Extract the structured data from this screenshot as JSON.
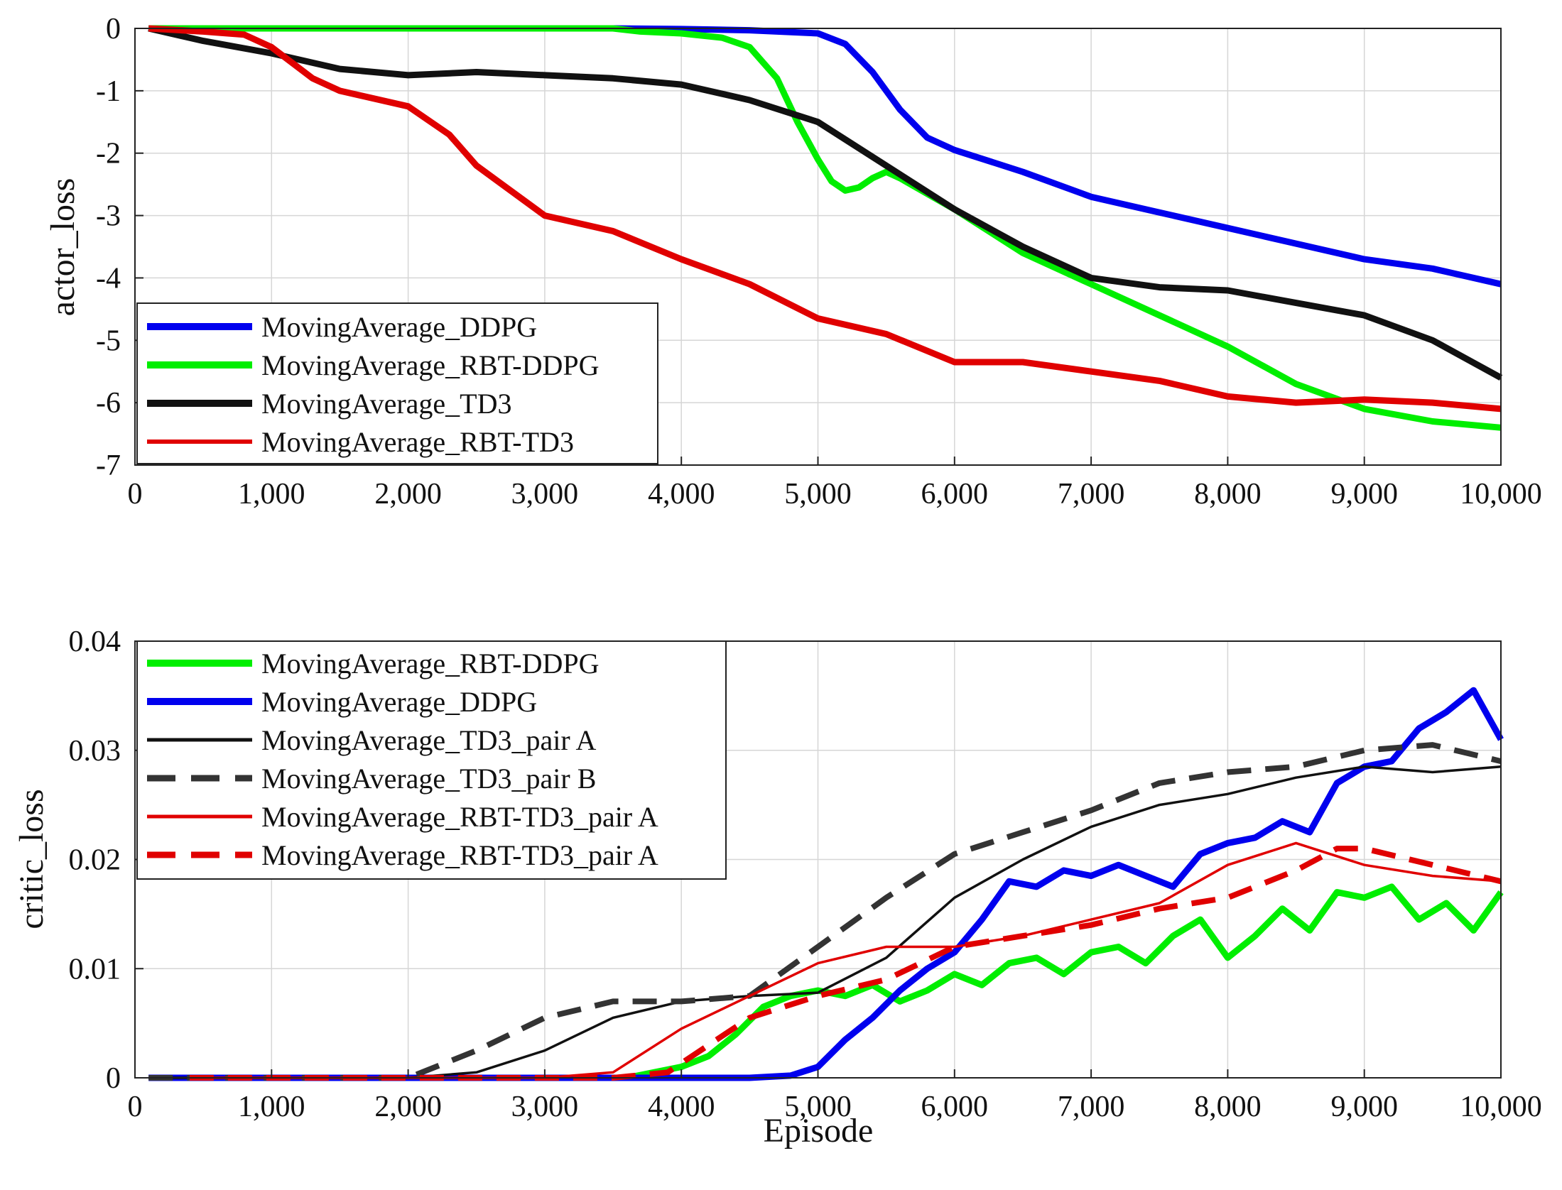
{
  "chart_data": [
    {
      "type": "line",
      "title": "",
      "xlabel": "",
      "ylabel": "actor_loss",
      "xlim": [
        0,
        10000
      ],
      "ylim": [
        -7,
        0
      ],
      "grid": true,
      "legend_position": "bottom-left",
      "x_ticks": [
        0,
        1000,
        2000,
        3000,
        4000,
        5000,
        6000,
        7000,
        8000,
        9000,
        10000
      ],
      "x_tick_labels": [
        "0",
        "1,000",
        "2,000",
        "3,000",
        "4,000",
        "5,000",
        "6,000",
        "7,000",
        "8,000",
        "9,000",
        "10,000"
      ],
      "y_ticks": [
        0,
        -1,
        -2,
        -3,
        -4,
        -5,
        -6,
        -7
      ],
      "y_tick_labels": [
        "0",
        "-1",
        "-2",
        "-3",
        "-4",
        "-5",
        "-6",
        "-7"
      ],
      "series": [
        {
          "name": "MovingAverage_DDPG",
          "color": "#0000ee",
          "style": "solid",
          "width": "thick",
          "x": [
            100,
            1000,
            2000,
            3000,
            3500,
            4000,
            4500,
            5000,
            5200,
            5400,
            5600,
            5800,
            6000,
            6500,
            7000,
            7500,
            8000,
            8500,
            9000,
            9500,
            10000
          ],
          "y": [
            0,
            0,
            0,
            0,
            0,
            -0.01,
            -0.03,
            -0.08,
            -0.25,
            -0.7,
            -1.3,
            -1.75,
            -1.95,
            -2.3,
            -2.7,
            -2.95,
            -3.2,
            -3.45,
            -3.7,
            -3.85,
            -4.1
          ]
        },
        {
          "name": "MovingAverage_RBT-DDPG",
          "color": "#00ee00",
          "style": "solid",
          "width": "thick",
          "x": [
            100,
            1000,
            2000,
            3000,
            3500,
            3700,
            4000,
            4300,
            4500,
            4700,
            4850,
            5000,
            5100,
            5200,
            5300,
            5400,
            5500,
            5600,
            5800,
            6000,
            6500,
            7000,
            7500,
            8000,
            8500,
            9000,
            9500,
            10000
          ],
          "y": [
            0,
            0,
            0,
            0,
            0,
            -0.05,
            -0.08,
            -0.15,
            -0.3,
            -0.8,
            -1.5,
            -2.1,
            -2.45,
            -2.6,
            -2.55,
            -2.4,
            -2.3,
            -2.4,
            -2.65,
            -2.9,
            -3.6,
            -4.1,
            -4.6,
            -5.1,
            -5.7,
            -6.1,
            -6.3,
            -6.4
          ]
        },
        {
          "name": "MovingAverage_TD3",
          "color": "#111111",
          "style": "solid",
          "width": "thick",
          "x": [
            100,
            500,
            1000,
            1500,
            2000,
            2500,
            3000,
            3500,
            4000,
            4500,
            5000,
            5500,
            6000,
            6500,
            7000,
            7500,
            8000,
            8500,
            9000,
            9500,
            10000
          ],
          "y": [
            0,
            -0.2,
            -0.4,
            -0.65,
            -0.75,
            -0.7,
            -0.75,
            -0.8,
            -0.9,
            -1.15,
            -1.5,
            -2.2,
            -2.9,
            -3.5,
            -4.0,
            -4.15,
            -4.2,
            -4.4,
            -4.6,
            -5.0,
            -5.6
          ]
        },
        {
          "name": "MovingAverage_RBT-TD3",
          "color": "#e00000",
          "style": "solid",
          "width": "thick",
          "x": [
            100,
            500,
            800,
            1000,
            1300,
            1500,
            2000,
            2300,
            2500,
            3000,
            3500,
            4000,
            4500,
            5000,
            5500,
            6000,
            6500,
            7000,
            7500,
            8000,
            8500,
            9000,
            9500,
            10000
          ],
          "y": [
            0,
            -0.05,
            -0.1,
            -0.3,
            -0.8,
            -1.0,
            -1.25,
            -1.7,
            -2.2,
            -3.0,
            -3.25,
            -3.7,
            -4.1,
            -4.65,
            -4.9,
            -5.35,
            -5.35,
            -5.5,
            -5.65,
            -5.9,
            -6.0,
            -5.95,
            -6.0,
            -6.1
          ]
        }
      ],
      "legend": [
        "MovingAverage_DDPG",
        "MovingAverage_RBT-DDPG",
        "MovingAverage_TD3",
        "MovingAverage_RBT-TD3"
      ]
    },
    {
      "type": "line",
      "title": "",
      "xlabel": "Episode",
      "ylabel": "critic_loss",
      "xlim": [
        0,
        10000
      ],
      "ylim": [
        0,
        0.04
      ],
      "grid": true,
      "legend_position": "top-left",
      "x_ticks": [
        0,
        1000,
        2000,
        3000,
        4000,
        5000,
        6000,
        7000,
        8000,
        9000,
        10000
      ],
      "x_tick_labels": [
        "0",
        "1,000",
        "2,000",
        "3,000",
        "4,000",
        "5,000",
        "6,000",
        "7,000",
        "8,000",
        "9,000",
        "10,000"
      ],
      "y_ticks": [
        0,
        0.01,
        0.02,
        0.03,
        0.04
      ],
      "y_tick_labels": [
        "0",
        "0.01",
        "0.02",
        "0.03",
        "0.04"
      ],
      "series": [
        {
          "name": "MovingAverage_RBT-DDPG",
          "color": "#00ee00",
          "style": "solid",
          "width": "thick",
          "x": [
            3600,
            3800,
            4000,
            4200,
            4400,
            4600,
            4800,
            5000,
            5200,
            5400,
            5600,
            5800,
            6000,
            6200,
            6400,
            6600,
            6800,
            7000,
            7200,
            7400,
            7600,
            7800,
            8000,
            8200,
            8400,
            8600,
            8800,
            9000,
            9200,
            9400,
            9600,
            9800,
            10000
          ],
          "y": [
            0,
            0.0005,
            0.001,
            0.002,
            0.004,
            0.0065,
            0.0075,
            0.008,
            0.0075,
            0.0085,
            0.007,
            0.008,
            0.0095,
            0.0085,
            0.0105,
            0.011,
            0.0095,
            0.0115,
            0.012,
            0.0105,
            0.013,
            0.0145,
            0.011,
            0.013,
            0.0155,
            0.0135,
            0.017,
            0.0165,
            0.0175,
            0.0145,
            0.016,
            0.0135,
            0.017
          ]
        },
        {
          "name": "MovingAverage_DDPG",
          "color": "#0000ee",
          "style": "solid",
          "width": "thick",
          "x": [
            100,
            1000,
            2000,
            3000,
            3500,
            4000,
            4500,
            4800,
            5000,
            5200,
            5400,
            5600,
            5800,
            6000,
            6200,
            6400,
            6600,
            6800,
            7000,
            7200,
            7400,
            7600,
            7800,
            8000,
            8200,
            8400,
            8600,
            8800,
            9000,
            9200,
            9400,
            9600,
            9800,
            10000
          ],
          "y": [
            0,
            0,
            0,
            0,
            0,
            0,
            0,
            0.0002,
            0.001,
            0.0035,
            0.0055,
            0.008,
            0.01,
            0.0115,
            0.0145,
            0.018,
            0.0175,
            0.019,
            0.0185,
            0.0195,
            0.0185,
            0.0175,
            0.0205,
            0.0215,
            0.022,
            0.0235,
            0.0225,
            0.027,
            0.0285,
            0.029,
            0.032,
            0.0335,
            0.0355,
            0.031
          ]
        },
        {
          "name": "MovingAverage_TD3_pair A",
          "color": "#111111",
          "style": "solid",
          "width": "thin",
          "x": [
            100,
            1000,
            2000,
            2500,
            3000,
            3500,
            4000,
            4500,
            5000,
            5500,
            6000,
            6500,
            7000,
            7500,
            8000,
            8500,
            9000,
            9500,
            10000
          ],
          "y": [
            0,
            0,
            0,
            0.0005,
            0.0025,
            0.0055,
            0.007,
            0.0075,
            0.0078,
            0.011,
            0.0165,
            0.02,
            0.023,
            0.025,
            0.026,
            0.0275,
            0.0285,
            0.028,
            0.0285
          ]
        },
        {
          "name": "MovingAverage_TD3_pair B",
          "color": "#333333",
          "style": "dashed",
          "width": "thick",
          "x": [
            100,
            1000,
            1500,
            2000,
            2500,
            3000,
            3500,
            4000,
            4500,
            5000,
            5500,
            6000,
            6500,
            7000,
            7500,
            8000,
            8500,
            9000,
            9500,
            10000
          ],
          "y": [
            0,
            0,
            0,
            0,
            0.0025,
            0.0055,
            0.007,
            0.007,
            0.0075,
            0.012,
            0.0165,
            0.0205,
            0.0225,
            0.0245,
            0.027,
            0.028,
            0.0285,
            0.03,
            0.0305,
            0.029
          ]
        },
        {
          "name": "MovingAverage_RBT-TD3_pair A",
          "color": "#e00000",
          "style": "solid",
          "width": "thin",
          "x": [
            400,
            1000,
            2000,
            3000,
            3500,
            4000,
            4500,
            5000,
            5500,
            6000,
            6500,
            7000,
            7500,
            8000,
            8500,
            9000,
            9500,
            10000
          ],
          "y": [
            0,
            0,
            0,
            0,
            0.0005,
            0.0045,
            0.0075,
            0.0105,
            0.012,
            0.012,
            0.013,
            0.0145,
            0.016,
            0.0195,
            0.0215,
            0.0195,
            0.0185,
            0.018
          ]
        },
        {
          "name": "MovingAverage_RBT-TD3_pair A",
          "color": "#e00000",
          "style": "dashed",
          "width": "thick",
          "x": [
            400,
            1000,
            2000,
            3000,
            3500,
            3900,
            4500,
            5000,
            5500,
            6000,
            6500,
            7000,
            7500,
            8000,
            8500,
            8800,
            9000,
            9500,
            10000
          ],
          "y": [
            0,
            0,
            0,
            0,
            0,
            0.0005,
            0.0055,
            0.0075,
            0.009,
            0.012,
            0.013,
            0.014,
            0.0155,
            0.0165,
            0.019,
            0.021,
            0.021,
            0.0195,
            0.018
          ]
        }
      ],
      "legend": [
        "MovingAverage_RBT-DDPG",
        "MovingAverage_DDPG",
        "MovingAverage_TD3_pair A",
        "MovingAverage_TD3_pair B",
        "MovingAverage_RBT-TD3_pair A",
        "MovingAverage_RBT-TD3_pair A"
      ]
    }
  ]
}
